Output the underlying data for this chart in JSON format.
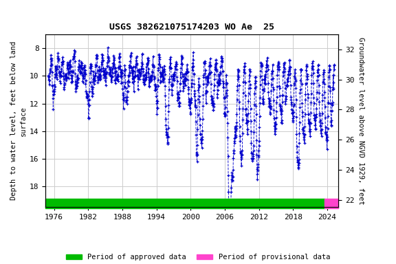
{
  "title": "USGS 382621075174203 WO Ae  25",
  "ylabel_left": "Depth to water level, feet below land\nsurface",
  "ylabel_right": "Groundwater level above NGVD 1929, feet",
  "xlim": [
    1974.5,
    2026.0
  ],
  "ylim_left": [
    19.5,
    7.0
  ],
  "ylim_right": [
    21.5,
    33.0
  ],
  "xticks": [
    1976,
    1982,
    1988,
    1994,
    2000,
    2006,
    2012,
    2018,
    2024
  ],
  "yticks_left": [
    8,
    10,
    12,
    14,
    16,
    18
  ],
  "yticks_right": [
    22,
    24,
    26,
    28,
    30,
    32
  ],
  "grid_color": "#cccccc",
  "data_color": "#0000cc",
  "bg_color": "#ffffff",
  "bar_approved_color": "#00bb00",
  "bar_provisional_color": "#ff44cc",
  "bar_approved_start": 1974.5,
  "bar_approved_end": 2023.5,
  "bar_provisional_start": 2023.5,
  "bar_provisional_end": 2026.0,
  "legend_approved": "Period of approved data",
  "legend_provisional": "Period of provisional data",
  "title_fontsize": 9.5,
  "axis_fontsize": 7.5,
  "tick_fontsize": 8
}
